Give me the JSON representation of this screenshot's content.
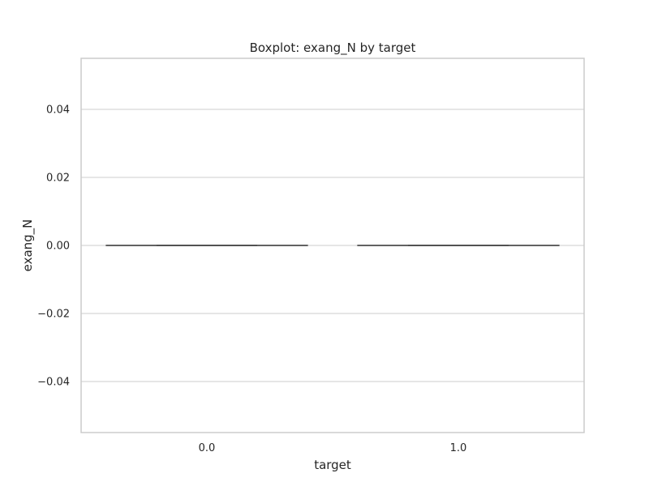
{
  "chart_data": {
    "type": "box",
    "title": "Boxplot: exang_N by target",
    "xlabel": "target",
    "ylabel": "exang_N",
    "categories": [
      "0.0",
      "1.0"
    ],
    "ylim": [
      -0.055,
      0.055
    ],
    "yticks": [
      -0.04,
      -0.02,
      0.0,
      0.02,
      0.04
    ],
    "ytick_labels": [
      "−0.04",
      "−0.02",
      "0.00",
      "0.02",
      "0.04"
    ],
    "grid": true,
    "boxes": [
      {
        "category": "0.0",
        "min": 0.0,
        "q1": 0.0,
        "median": 0.0,
        "q3": 0.0,
        "max": 0.0
      },
      {
        "category": "1.0",
        "min": 0.0,
        "q1": 0.0,
        "median": 0.0,
        "q3": 0.0,
        "max": 0.0
      }
    ],
    "colors": {
      "box_line": "#4d4d4d",
      "grid": "#cccccc",
      "frame": "#cccccc",
      "text": "#262626"
    }
  }
}
